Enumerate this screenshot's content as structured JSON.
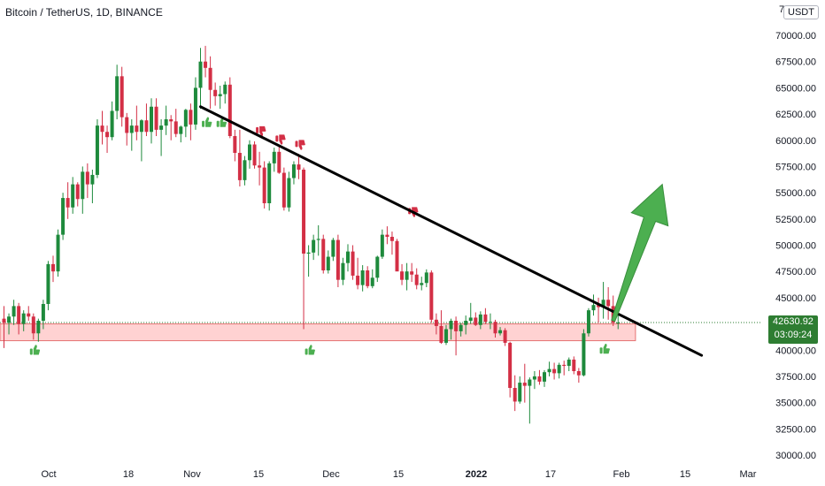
{
  "header": {
    "title": "Bitcoin / TetherUS, 1D, BINANCE",
    "currency_badge": "USDT"
  },
  "price_tag": {
    "price": "42630.92",
    "countdown": "03:09:24"
  },
  "colors": {
    "up": "#26a69a",
    "down": "#d32f45",
    "up_fill": "#1e8a3c",
    "trendline": "#000000",
    "arrow": "#4caf50",
    "zone_fill": "#ffd2d2",
    "zone_stroke": "#e57373",
    "current_price_line": "#2e7d32"
  },
  "chart_data": {
    "type": "candlestick",
    "title": "Bitcoin / TetherUS, 1D, BINANCE",
    "ylim": [
      29500,
      72000
    ],
    "y_ticks": [
      "30000.00",
      "32500.00",
      "35000.00",
      "37500.00",
      "40000.00",
      "42500.00",
      "45000.00",
      "47500.00",
      "50000.00",
      "52500.00",
      "55000.00",
      "57500.00",
      "60000.00",
      "62500.00",
      "65000.00",
      "67500.00",
      "70000.00"
    ],
    "y_top_partial_label": "7",
    "x_ticks": [
      "Oct",
      "18",
      "Nov",
      "15",
      "Dec",
      "15",
      "2022",
      "17",
      "Feb",
      "15",
      "Mar"
    ],
    "candles": [
      [
        43000,
        44200,
        40200,
        42600
      ],
      [
        42600,
        43500,
        41500,
        43200
      ],
      [
        43200,
        44800,
        42400,
        44200
      ],
      [
        44200,
        44500,
        41500,
        42500
      ],
      [
        42500,
        43800,
        41800,
        43500
      ],
      [
        43500,
        44200,
        42800,
        43200
      ],
      [
        43200,
        43500,
        41000,
        41600
      ],
      [
        41600,
        43000,
        40800,
        42800
      ],
      [
        42800,
        44800,
        42000,
        44400
      ],
      [
        44400,
        48500,
        43800,
        48200
      ],
      [
        48200,
        49000,
        46500,
        47500
      ],
      [
        47500,
        51500,
        47000,
        51000
      ],
      [
        51000,
        55000,
        50500,
        54500
      ],
      [
        54500,
        56000,
        52500,
        53600
      ],
      [
        53600,
        56500,
        53000,
        55800
      ],
      [
        55800,
        56000,
        53700,
        54400
      ],
      [
        54400,
        57500,
        53000,
        57000
      ],
      [
        57000,
        57800,
        54500,
        55800
      ],
      [
        55800,
        57200,
        54000,
        56700
      ],
      [
        56700,
        62000,
        56400,
        61400
      ],
      [
        61400,
        62800,
        59600,
        60800
      ],
      [
        60800,
        61400,
        58800,
        60300
      ],
      [
        60300,
        63700,
        60000,
        62800
      ],
      [
        62800,
        67200,
        62000,
        66100
      ],
      [
        66100,
        67000,
        61300,
        62200
      ],
      [
        62200,
        62600,
        59500,
        60700
      ],
      [
        60700,
        62000,
        59000,
        61400
      ],
      [
        61400,
        63300,
        60000,
        60800
      ],
      [
        60800,
        62000,
        58000,
        61900
      ],
      [
        61900,
        63500,
        60400,
        60800
      ],
      [
        60800,
        64000,
        59700,
        63200
      ],
      [
        63200,
        64000,
        60400,
        61000
      ],
      [
        61000,
        62000,
        58500,
        61400
      ],
      [
        61400,
        63300,
        60500,
        62000
      ],
      [
        62000,
        62400,
        60000,
        61800
      ],
      [
        61800,
        63000,
        60300,
        60600
      ],
      [
        60600,
        61400,
        59800,
        61300
      ],
      [
        61300,
        63000,
        60300,
        62900
      ],
      [
        62900,
        63500,
        60000,
        61500
      ],
      [
        61500,
        66000,
        61000,
        65000
      ],
      [
        65000,
        68800,
        63000,
        67500
      ],
      [
        67500,
        69000,
        66000,
        66900
      ],
      [
        66900,
        68000,
        63000,
        64800
      ],
      [
        64800,
        65500,
        63300,
        64200
      ],
      [
        64200,
        65200,
        63000,
        64400
      ],
      [
        64400,
        65600,
        63500,
        65300
      ],
      [
        65300,
        66000,
        60200,
        60400
      ],
      [
        60400,
        61000,
        58000,
        58800
      ],
      [
        58800,
        61000,
        55600,
        56200
      ],
      [
        56200,
        58500,
        55700,
        58100
      ],
      [
        58100,
        60000,
        57300,
        59600
      ],
      [
        59600,
        59900,
        57300,
        57600
      ],
      [
        57600,
        58900,
        55700,
        57400
      ],
      [
        57400,
        58000,
        53500,
        54000
      ],
      [
        54000,
        58000,
        53300,
        57800
      ],
      [
        57800,
        59300,
        57000,
        58900
      ],
      [
        58900,
        59500,
        56800,
        56900
      ],
      [
        56900,
        57400,
        53300,
        53600
      ],
      [
        53600,
        57000,
        53200,
        56400
      ],
      [
        56400,
        58000,
        55800,
        57700
      ],
      [
        57700,
        58700,
        56300,
        57200
      ],
      [
        57200,
        57400,
        42000,
        49200
      ],
      [
        49200,
        50000,
        47000,
        49300
      ],
      [
        49300,
        51000,
        48600,
        50500
      ],
      [
        50500,
        51900,
        49000,
        50600
      ],
      [
        50600,
        51000,
        47300,
        47600
      ],
      [
        47600,
        49500,
        47300,
        48900
      ],
      [
        48900,
        50700,
        48500,
        50500
      ],
      [
        50500,
        51000,
        46000,
        46700
      ],
      [
        46700,
        48800,
        46200,
        48300
      ],
      [
        48300,
        50100,
        47500,
        49400
      ],
      [
        49400,
        50000,
        46700,
        47100
      ],
      [
        47100,
        48800,
        45800,
        46200
      ],
      [
        46200,
        48100,
        45600,
        47600
      ],
      [
        47600,
        48000,
        45900,
        46100
      ],
      [
        46100,
        47700,
        45900,
        46900
      ],
      [
        46900,
        49000,
        46500,
        48900
      ],
      [
        48900,
        51500,
        48700,
        51000
      ],
      [
        51000,
        51800,
        50100,
        50800
      ],
      [
        50800,
        51300,
        49100,
        50400
      ],
      [
        50400,
        50600,
        47800,
        47500
      ],
      [
        47500,
        48200,
        46200,
        46700
      ],
      [
        46700,
        48300,
        45700,
        47500
      ],
      [
        47500,
        48300,
        46500,
        47200
      ],
      [
        47200,
        47800,
        45800,
        46200
      ],
      [
        46200,
        47000,
        45700,
        46400
      ],
      [
        46400,
        47700,
        46000,
        47400
      ],
      [
        47400,
        47600,
        42600,
        42900
      ],
      [
        42900,
        43500,
        41500,
        42300
      ],
      [
        42300,
        43800,
        40600,
        40700
      ],
      [
        40700,
        42400,
        40500,
        42000
      ],
      [
        42000,
        43000,
        41000,
        42800
      ],
      [
        42800,
        43200,
        39500,
        41800
      ],
      [
        41800,
        42600,
        41300,
        42400
      ],
      [
        42400,
        43300,
        41500,
        42800
      ],
      [
        42800,
        44500,
        42500,
        43100
      ],
      [
        43100,
        43600,
        42300,
        42400
      ],
      [
        42400,
        43700,
        42000,
        43400
      ],
      [
        43400,
        44000,
        42500,
        42700
      ],
      [
        42700,
        43500,
        42000,
        42700
      ],
      [
        42700,
        42900,
        41200,
        41600
      ],
      [
        41600,
        42200,
        41400,
        41900
      ],
      [
        41900,
        42100,
        40400,
        40700
      ],
      [
        40700,
        40800,
        35500,
        36400
      ],
      [
        36400,
        37600,
        34200,
        35100
      ],
      [
        35100,
        37500,
        34900,
        36900
      ],
      [
        36900,
        38700,
        35000,
        36600
      ],
      [
        36600,
        37400,
        33000,
        37200
      ],
      [
        37200,
        38000,
        36300,
        37500
      ],
      [
        37500,
        38100,
        36700,
        37000
      ],
      [
        37000,
        38100,
        36500,
        37900
      ],
      [
        37900,
        38900,
        37500,
        38200
      ],
      [
        38200,
        38800,
        37200,
        37800
      ],
      [
        37800,
        38800,
        37300,
        38600
      ],
      [
        38600,
        39000,
        37600,
        38500
      ],
      [
        38500,
        39300,
        38000,
        39100
      ],
      [
        39100,
        39400,
        37700,
        38000
      ],
      [
        38000,
        38300,
        36900,
        37600
      ],
      [
        37600,
        42000,
        37500,
        41600
      ],
      [
        41600,
        44000,
        41300,
        43800
      ],
      [
        43800,
        45300,
        43300,
        44300
      ],
      [
        44300,
        45000,
        42600,
        44100
      ],
      [
        44100,
        46500,
        43000,
        44800
      ],
      [
        44800,
        46000,
        42900,
        44200
      ],
      [
        44200,
        45200,
        42300,
        42600
      ],
      [
        42600,
        43500,
        42000,
        42630
      ]
    ],
    "trendline": {
      "from": {
        "candle": 40,
        "price": 63200
      },
      "to": {
        "candle": 142,
        "price": 39500
      },
      "color": "#000000"
    },
    "arrow": {
      "from": {
        "candle": 124,
        "price": 42800
      },
      "to": {
        "candle": 134,
        "price": 55800
      },
      "color": "#4caf50"
    },
    "support_zone": {
      "from_candle": 0,
      "to_candle": 128,
      "low": 40900,
      "high": 42500
    },
    "current_price": 42630.92,
    "thumbs_up_markers": [
      {
        "candle": 6,
        "price": 39900
      },
      {
        "candle": 62,
        "price": 39900
      },
      {
        "candle": 41,
        "price": 61600
      },
      {
        "candle": 44,
        "price": 61600
      },
      {
        "candle": 122,
        "price": 40000
      }
    ],
    "thumbs_down_markers": [
      {
        "candle": 52,
        "price": 61000
      },
      {
        "candle": 56,
        "price": 60200
      },
      {
        "candle": 60,
        "price": 59700
      },
      {
        "candle": 83,
        "price": 53300
      }
    ]
  }
}
